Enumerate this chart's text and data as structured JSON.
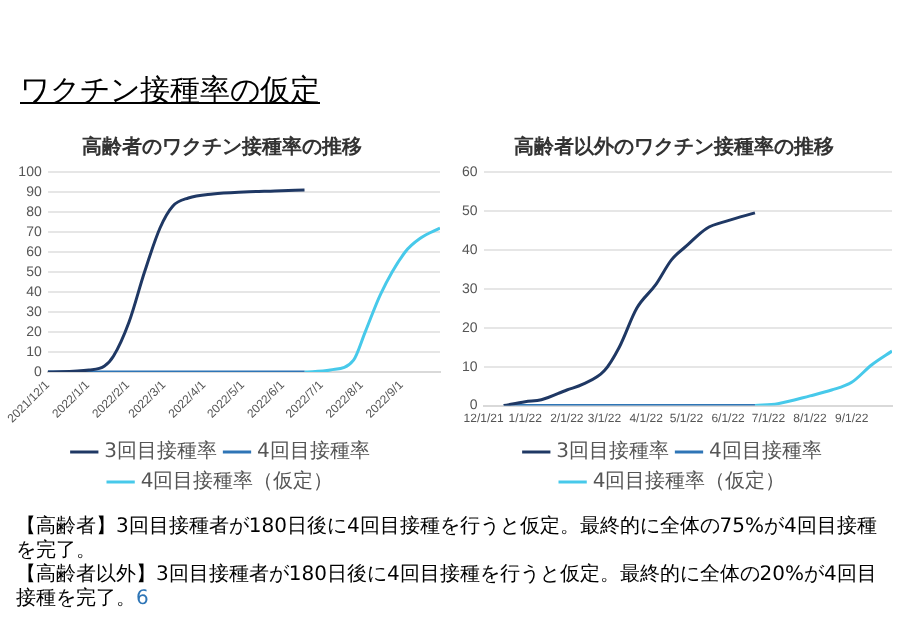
{
  "chart_data": [
    {
      "type": "line",
      "title": "高齢者のワクチン接種率の推移",
      "annotations": [
        "ワクチン接種率の仮定"
      ],
      "series": [
        {
          "name": "3回目接種率",
          "color": "#1f3864",
          "x": [
            "2021-12-01",
            "2022-01-02",
            "2022-01-14",
            "2022-01-21",
            "2022-02-02",
            "2022-02-14",
            "2022-02-26",
            "2022-03-08",
            "2022-03-20",
            "2022-04-08",
            "2022-05-02",
            "2022-05-26",
            "2022-06-18"
          ],
          "values": [
            0,
            1,
            3,
            8,
            25,
            50,
            72,
            83,
            87,
            89,
            90,
            90.5,
            91
          ]
        },
        {
          "name": "4回目接種率",
          "color": "#2e75b6",
          "x": [
            "2021-12-01",
            "2022-06-18"
          ],
          "values": [
            0,
            0
          ]
        },
        {
          "name": "4回目接種率（仮定）",
          "color": "#47c9ea",
          "x": [
            "2022-06-18",
            "2022-07-08",
            "2022-07-26",
            "2022-08-04",
            "2022-08-16",
            "2022-09-04",
            "2022-09-16",
            "2022-10-01"
          ],
          "values": [
            0,
            1,
            6,
            20,
            39,
            60,
            67,
            72
          ]
        }
      ],
      "xlim": [
        "2021-12-01",
        "2022-10-01"
      ],
      "xticks": [
        {
          "value": "2021-12-01",
          "label": "2021/12/1"
        },
        {
          "value": "2022-01-01",
          "label": "2022/1/1"
        },
        {
          "value": "2022-02-01",
          "label": "2022/2/1"
        },
        {
          "value": "2022-03-01",
          "label": "2022/3/1"
        },
        {
          "value": "2022-04-01",
          "label": "2022/4/1"
        },
        {
          "value": "2022-05-01",
          "label": "2022/5/1"
        },
        {
          "value": "2022-06-01",
          "label": "2022/6/1"
        },
        {
          "value": "2022-07-01",
          "label": "2022/7/1"
        },
        {
          "value": "2022-08-01",
          "label": "2022/8/1"
        },
        {
          "value": "2022-09-01",
          "label": "2022/9/1"
        }
      ],
      "ylim": [
        0,
        100
      ],
      "yticks": [
        0,
        10,
        20,
        30,
        40,
        50,
        60,
        70,
        80,
        90,
        100
      ],
      "grid": "y",
      "legend": "bottom",
      "marker": "none"
    },
    {
      "type": "line",
      "title": "高齢者以外のワクチン接種率の推移",
      "annotations": [
        "【高齢者】3回目接種者が180日後に4回目接種を行うと仮定。最終的に全体の75%が4回目接種を完了。",
        "【高齢者以外】3回目接種者が180日後に4回目接種を行うと仮定。最終的に全体の20%が4回目接種を完了。",
        "6"
      ],
      "series": [
        {
          "name": "3回目接種率",
          "color": "#1f3864",
          "x": [
            "2021-12-16",
            "2022-01-01",
            "2022-01-13",
            "2022-02-01",
            "2022-02-13",
            "2022-03-01",
            "2022-03-12",
            "2022-03-25",
            "2022-04-08",
            "2022-04-20",
            "2022-05-01",
            "2022-05-16",
            "2022-06-01",
            "2022-06-21"
          ],
          "values": [
            0,
            1,
            1.5,
            4,
            5.5,
            9,
            15,
            25,
            31,
            37.5,
            41,
            45.5,
            47.5,
            49.5
          ]
        },
        {
          "name": "4回目接種率",
          "color": "#2e75b6",
          "x": [
            "2021-12-16",
            "2022-06-21"
          ],
          "values": [
            0,
            0
          ]
        },
        {
          "name": "4回目接種率（仮定）",
          "color": "#47c9ea",
          "x": [
            "2022-06-21",
            "2022-07-08",
            "2022-08-01",
            "2022-08-17",
            "2022-09-01",
            "2022-09-16",
            "2022-10-01"
          ],
          "values": [
            0,
            0.5,
            2.5,
            4,
            6,
            10.5,
            14
          ]
        }
      ],
      "xlim": [
        "2021-12-01",
        "2022-10-01"
      ],
      "xticks": [
        {
          "value": "2021-12-01",
          "label": "12/1/21"
        },
        {
          "value": "2022-01-01",
          "label": "1/1/22"
        },
        {
          "value": "2022-02-01",
          "label": "2/1/22"
        },
        {
          "value": "2022-03-01",
          "label": "3/1/22"
        },
        {
          "value": "2022-04-01",
          "label": "4/1/22"
        },
        {
          "value": "2022-05-01",
          "label": "5/1/22"
        },
        {
          "value": "2022-06-01",
          "label": "6/1/22"
        },
        {
          "value": "2022-07-01",
          "label": "7/1/22"
        },
        {
          "value": "2022-08-01",
          "label": "8/1/22"
        },
        {
          "value": "2022-09-01",
          "label": "9/1/22"
        }
      ],
      "ylim": [
        0,
        60
      ],
      "yticks": [
        0,
        10,
        20,
        30,
        40,
        50,
        60
      ],
      "grid": "y",
      "legend": "bottom",
      "marker": "none"
    }
  ]
}
